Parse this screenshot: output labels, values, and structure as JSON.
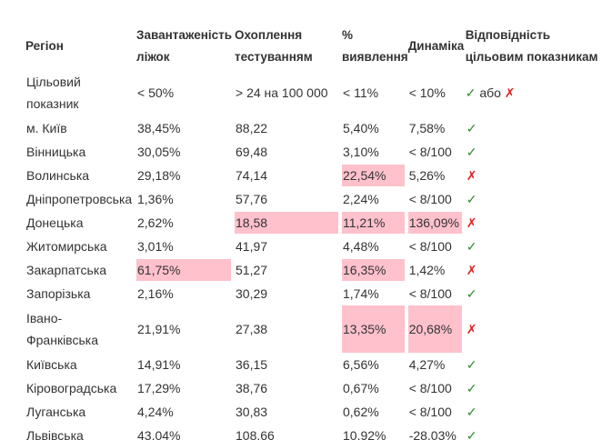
{
  "table": {
    "header": [
      "Регіон",
      "Завантаженість ліжок",
      "Охоплення тестуванням",
      "% виявлення",
      "Динаміка",
      "Відповідність цільовим показникам"
    ],
    "target": {
      "cells": [
        "Цільовий показник",
        "< 50%",
        "> 24 на 100 000",
        "< 11%",
        "< 10%"
      ],
      "mark_ok": "✓",
      "word": "або",
      "mark_bad": "✗"
    },
    "rows": [
      {
        "cells": [
          "м. Київ",
          "38,45%",
          "88,22",
          "5,40%",
          "7,58%",
          "✓"
        ],
        "ok": true,
        "highlight": []
      },
      {
        "cells": [
          "Вінницька",
          "30,05%",
          "69,48",
          "3,10%",
          "< 8/100",
          "✓"
        ],
        "ok": true,
        "highlight": []
      },
      {
        "cells": [
          "Волинська",
          "29,18%",
          "74,14",
          "22,54%",
          "5,26%",
          "✗"
        ],
        "ok": false,
        "highlight": [
          3
        ]
      },
      {
        "cells": [
          "Дніпропетровська",
          "1,36%",
          "57,76",
          "2,24%",
          "< 8/100",
          "✓"
        ],
        "ok": true,
        "highlight": []
      },
      {
        "cells": [
          "Донецька",
          "2,62%",
          "18,58",
          "11,21%",
          "136,09%",
          "✗"
        ],
        "ok": false,
        "highlight": [
          2,
          3,
          4
        ]
      },
      {
        "cells": [
          "Житомирська",
          "3,01%",
          "41,97",
          "4,48%",
          "< 8/100",
          "✓"
        ],
        "ok": true,
        "highlight": []
      },
      {
        "cells": [
          "Закарпатська",
          "61,75%",
          "51,27",
          "16,35%",
          "1,42%",
          "✗"
        ],
        "ok": false,
        "highlight": [
          1,
          3
        ]
      },
      {
        "cells": [
          "Запорізька",
          "2,16%",
          "30,29",
          "1,74%",
          "< 8/100",
          "✓"
        ],
        "ok": true,
        "highlight": []
      },
      {
        "cells": [
          "Івано-Франківська",
          "21,91%",
          "27,38",
          "13,35%",
          "20,68%",
          "✗"
        ],
        "ok": false,
        "highlight": [
          3,
          4
        ]
      },
      {
        "cells": [
          "Київська",
          "14,91%",
          "36,15",
          "6,56%",
          "4,27%",
          "✓"
        ],
        "ok": true,
        "highlight": []
      },
      {
        "cells": [
          "Кіровоградська",
          "17,29%",
          "38,76",
          "0,67%",
          "< 8/100",
          "✓"
        ],
        "ok": true,
        "highlight": []
      },
      {
        "cells": [
          "Луганська",
          "4,24%",
          "30,83",
          "0,62%",
          "< 8/100",
          "✓"
        ],
        "ok": true,
        "highlight": []
      },
      {
        "cells": [
          "Львівська",
          "43,04%",
          "108,66",
          "10,92%",
          "-28,03%",
          "✓"
        ],
        "ok": true,
        "highlight": []
      }
    ]
  }
}
